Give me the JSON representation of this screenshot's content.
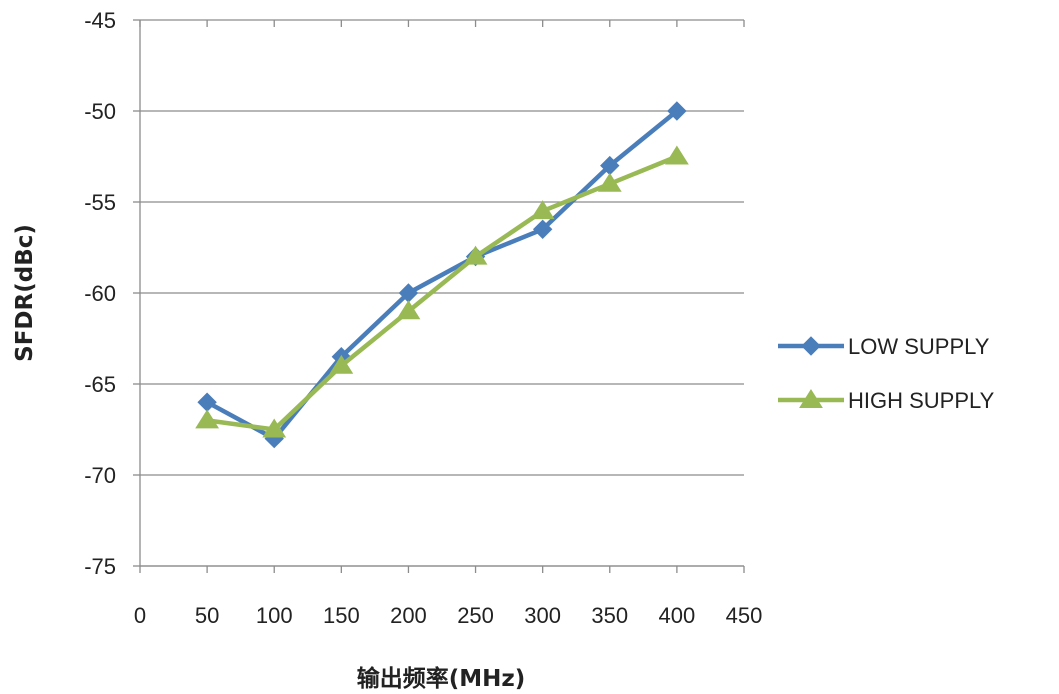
{
  "chart_data": {
    "type": "line",
    "title": "",
    "xlabel": "输出频率(MHz)",
    "ylabel": "SFDR(dBc)",
    "xlim": [
      0,
      450
    ],
    "ylim": [
      -75,
      -45
    ],
    "x_ticks": [
      0,
      50,
      100,
      150,
      200,
      250,
      300,
      350,
      400,
      450
    ],
    "y_ticks": [
      -45,
      -50,
      -55,
      -60,
      -65,
      -70,
      -75
    ],
    "grid": "horizontal",
    "legend_position": "right",
    "x": [
      50,
      100,
      150,
      200,
      250,
      300,
      350,
      400
    ],
    "series": [
      {
        "name": "LOW SUPPLY",
        "color": "#4a7ebb",
        "marker": "diamond",
        "values": [
          -66,
          -68,
          -63.5,
          -60,
          -58,
          -56.5,
          -53,
          -50
        ]
      },
      {
        "name": "HIGH SUPPLY",
        "color": "#98b954",
        "marker": "triangle",
        "values": [
          -67,
          -67.5,
          -64,
          -61,
          -58,
          -55.5,
          -54,
          -52.5
        ]
      }
    ]
  }
}
